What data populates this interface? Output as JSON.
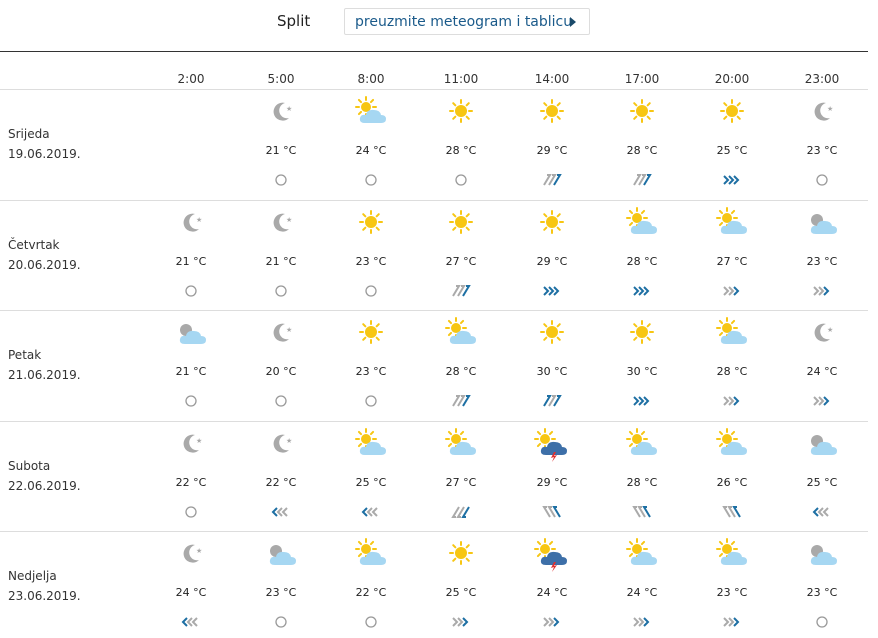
{
  "header": {
    "city": "Split",
    "button": "preuzmite meteogram i tablicu"
  },
  "table": {
    "times": [
      "2:00",
      "5:00",
      "8:00",
      "11:00",
      "14:00",
      "17:00",
      "20:00",
      "23:00"
    ],
    "days": [
      {
        "name": "Srijeda",
        "date": "19.06.2019.",
        "temps": [
          null,
          "21 °C",
          "24 °C",
          "28 °C",
          "29 °C",
          "28 °C",
          "25 °C",
          "23 °C"
        ]
      },
      {
        "name": "Četvrtak",
        "date": "20.06.2019.",
        "temps": [
          "21 °C",
          "21 °C",
          "23 °C",
          "27 °C",
          "29 °C",
          "28 °C",
          "27 °C",
          "23 °C"
        ]
      },
      {
        "name": "Petak",
        "date": "21.06.2019.",
        "temps": [
          "21 °C",
          "20 °C",
          "23 °C",
          "28 °C",
          "30 °C",
          "30 °C",
          "28 °C",
          "24 °C"
        ]
      },
      {
        "name": "Subota",
        "date": "22.06.2019.",
        "temps": [
          "22 °C",
          "22 °C",
          "25 °C",
          "27 °C",
          "29 °C",
          "28 °C",
          "26 °C",
          "25 °C"
        ]
      },
      {
        "name": "Nedjelja",
        "date": "23.06.2019.",
        "temps": [
          "24 °C",
          "23 °C",
          "22 °C",
          "25 °C",
          "24 °C",
          "24 °C",
          "23 °C",
          "23 °C"
        ]
      }
    ]
  }
}
